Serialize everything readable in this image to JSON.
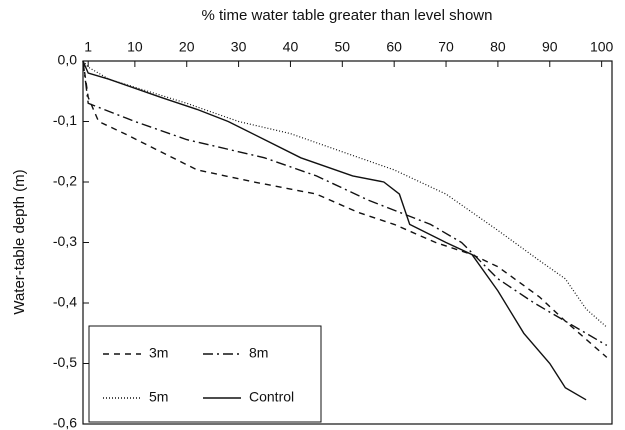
{
  "chart_data": {
    "type": "line",
    "xlabel": "% time water table greater than level shown",
    "ylabel": "Water-table depth (m)",
    "xlim": [
      0,
      102
    ],
    "ylim": [
      -0.6,
      0.0
    ],
    "xticks": [
      1,
      10,
      20,
      30,
      40,
      50,
      60,
      70,
      80,
      90,
      100
    ],
    "yticks": [
      {
        "value": 0.0,
        "label": "0,0"
      },
      {
        "value": -0.1,
        "label": "-0,1"
      },
      {
        "value": -0.2,
        "label": "-0,2"
      },
      {
        "value": -0.3,
        "label": "-0,3"
      },
      {
        "value": -0.4,
        "label": "-0,4"
      },
      {
        "value": -0.5,
        "label": "-0,5"
      },
      {
        "value": -0.6,
        "label": "-0,6"
      }
    ],
    "legend": "lower left",
    "series": [
      {
        "name": "3m",
        "color": "#111111",
        "dash": "6,5",
        "x": [
          0,
          1,
          3,
          8,
          15,
          22,
          33,
          45,
          53,
          60,
          68,
          75,
          80,
          88,
          93,
          101
        ],
        "values": [
          0.0,
          -0.06,
          -0.1,
          -0.12,
          -0.15,
          -0.18,
          -0.2,
          -0.22,
          -0.25,
          -0.27,
          -0.3,
          -0.32,
          -0.34,
          -0.39,
          -0.43,
          -0.49
        ]
      },
      {
        "name": "8m",
        "color": "#111111",
        "dash": "10,4,2,4",
        "x": [
          0,
          1,
          10,
          20,
          35,
          45,
          55,
          67,
          73,
          80,
          87,
          101
        ],
        "values": [
          0.0,
          -0.07,
          -0.1,
          -0.13,
          -0.16,
          -0.19,
          -0.23,
          -0.27,
          -0.3,
          -0.36,
          -0.4,
          -0.47
        ]
      },
      {
        "name": "5m",
        "color": "#111111",
        "dash": "1,2",
        "x": [
          0,
          1,
          5,
          20,
          30,
          40,
          50,
          60,
          70,
          80,
          88,
          93,
          97,
          101
        ],
        "values": [
          0.0,
          -0.01,
          -0.03,
          -0.07,
          -0.1,
          -0.12,
          -0.15,
          -0.18,
          -0.22,
          -0.28,
          -0.33,
          -0.36,
          -0.41,
          -0.44
        ]
      },
      {
        "name": "Control",
        "color": "#111111",
        "dash": "none",
        "x": [
          0,
          1,
          5,
          15,
          22,
          28,
          35,
          42,
          52,
          58,
          61,
          63,
          70,
          75,
          80,
          85,
          90,
          93,
          97
        ],
        "values": [
          0.0,
          -0.02,
          -0.03,
          -0.06,
          -0.08,
          -0.1,
          -0.13,
          -0.16,
          -0.19,
          -0.2,
          -0.22,
          -0.27,
          -0.3,
          -0.32,
          -0.38,
          -0.45,
          -0.5,
          -0.54,
          -0.56
        ]
      }
    ]
  }
}
